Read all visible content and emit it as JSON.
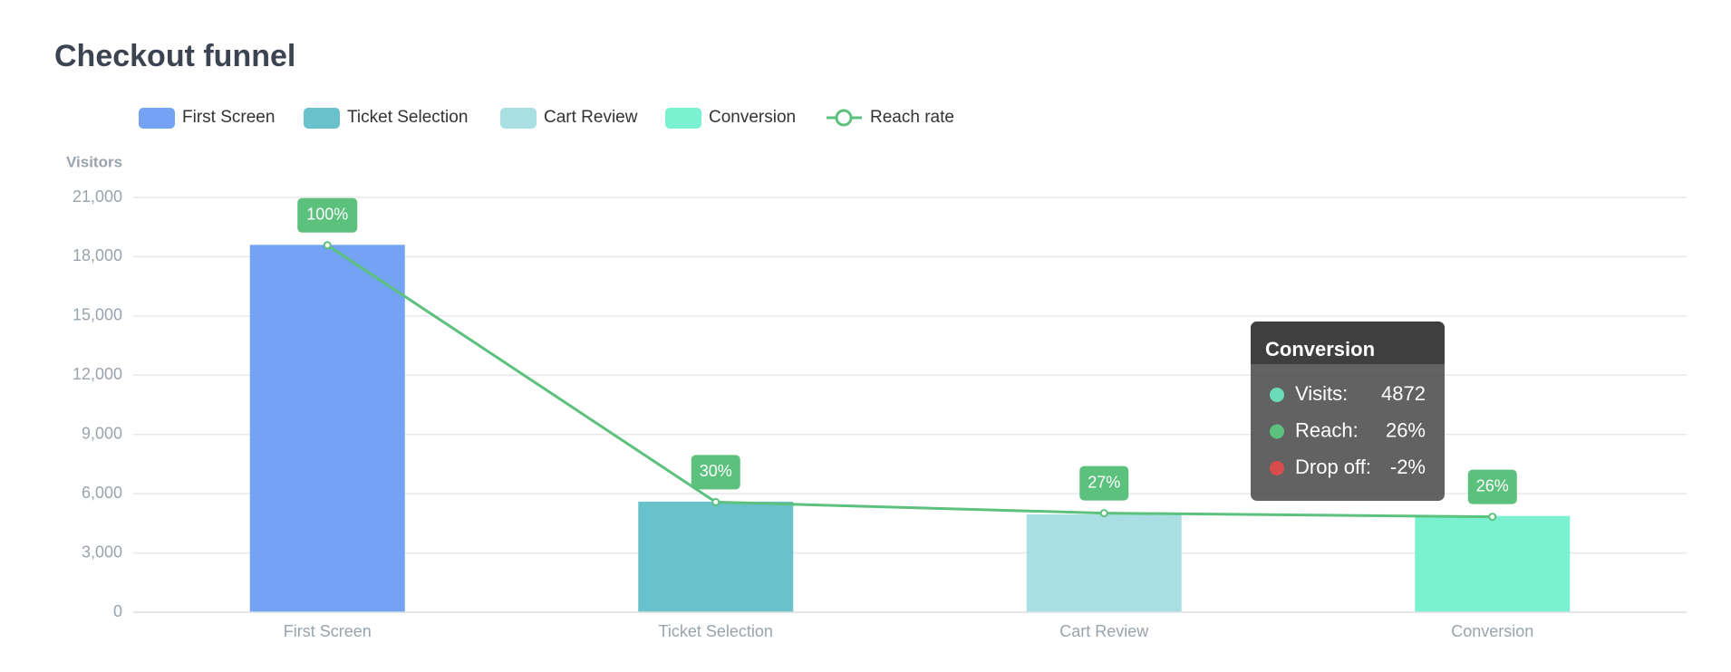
{
  "chart_data": {
    "type": "bar",
    "title": "Checkout funnel",
    "ylabel": "Visitors",
    "categories": [
      "First Screen",
      "Ticket Selection",
      "Cart Review",
      "Conversion"
    ],
    "values": [
      18600,
      5600,
      4950,
      4872
    ],
    "colors": [
      "#73a3f2",
      "#68c1cb",
      "#a9dfe3",
      "#7af1d0"
    ],
    "ylim": [
      0,
      21000
    ],
    "yticks": [
      0,
      {
        "value": 3000,
        "label": "3,000"
      },
      {
        "value": 6000,
        "label": "6,000"
      },
      {
        "value": 9000,
        "label": "9,000"
      },
      {
        "value": 12000,
        "label": "12,000"
      },
      {
        "value": 15000,
        "label": "15,000"
      },
      {
        "value": 18000,
        "label": "18,000"
      },
      {
        "value": 21000,
        "label": "21,000"
      }
    ],
    "grid": true,
    "line": {
      "type": "line",
      "name": "Reach rate",
      "color": "#5bc17d",
      "axis": "y2",
      "values": [
        100,
        30,
        27,
        26
      ],
      "value_labels": [
        "100%",
        "30%",
        "27%",
        "26%"
      ]
    },
    "y2lim": [
      0,
      113
    ],
    "tooltip": {
      "title": "Conversion",
      "rows": [
        {
          "label": "Visits:",
          "value": "4872",
          "color": "#6cdcb8"
        },
        {
          "label": "Reach:",
          "value": "26%",
          "color": "#5bc17d"
        },
        {
          "label": "Drop off:",
          "value": "-2%",
          "color": "#d94c4c"
        }
      ]
    }
  }
}
